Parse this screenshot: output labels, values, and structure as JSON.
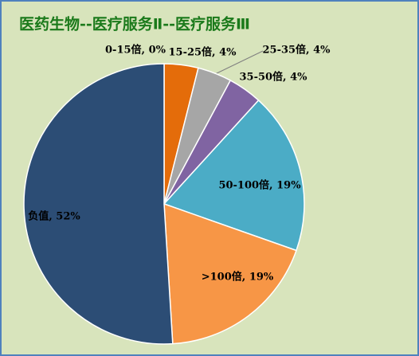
{
  "chart_data": {
    "type": "pie",
    "title": "医药生物--医疗服务Ⅱ--医疗服务Ⅲ",
    "labels": [
      "0-15倍, 0%",
      "15-25倍, 4%",
      "25-35倍, 4%",
      "35-50倍, 4%",
      "50-100倍, 19%",
      ">100倍, 19%",
      "负值, 52%"
    ],
    "values": [
      0,
      4,
      4,
      4,
      19,
      19,
      52
    ],
    "colors": [
      "#4f81bd",
      "#e46c0a",
      "#a6a6a6",
      "#8064a2",
      "#4bacc6",
      "#f79646",
      "#2c4d75"
    ]
  }
}
